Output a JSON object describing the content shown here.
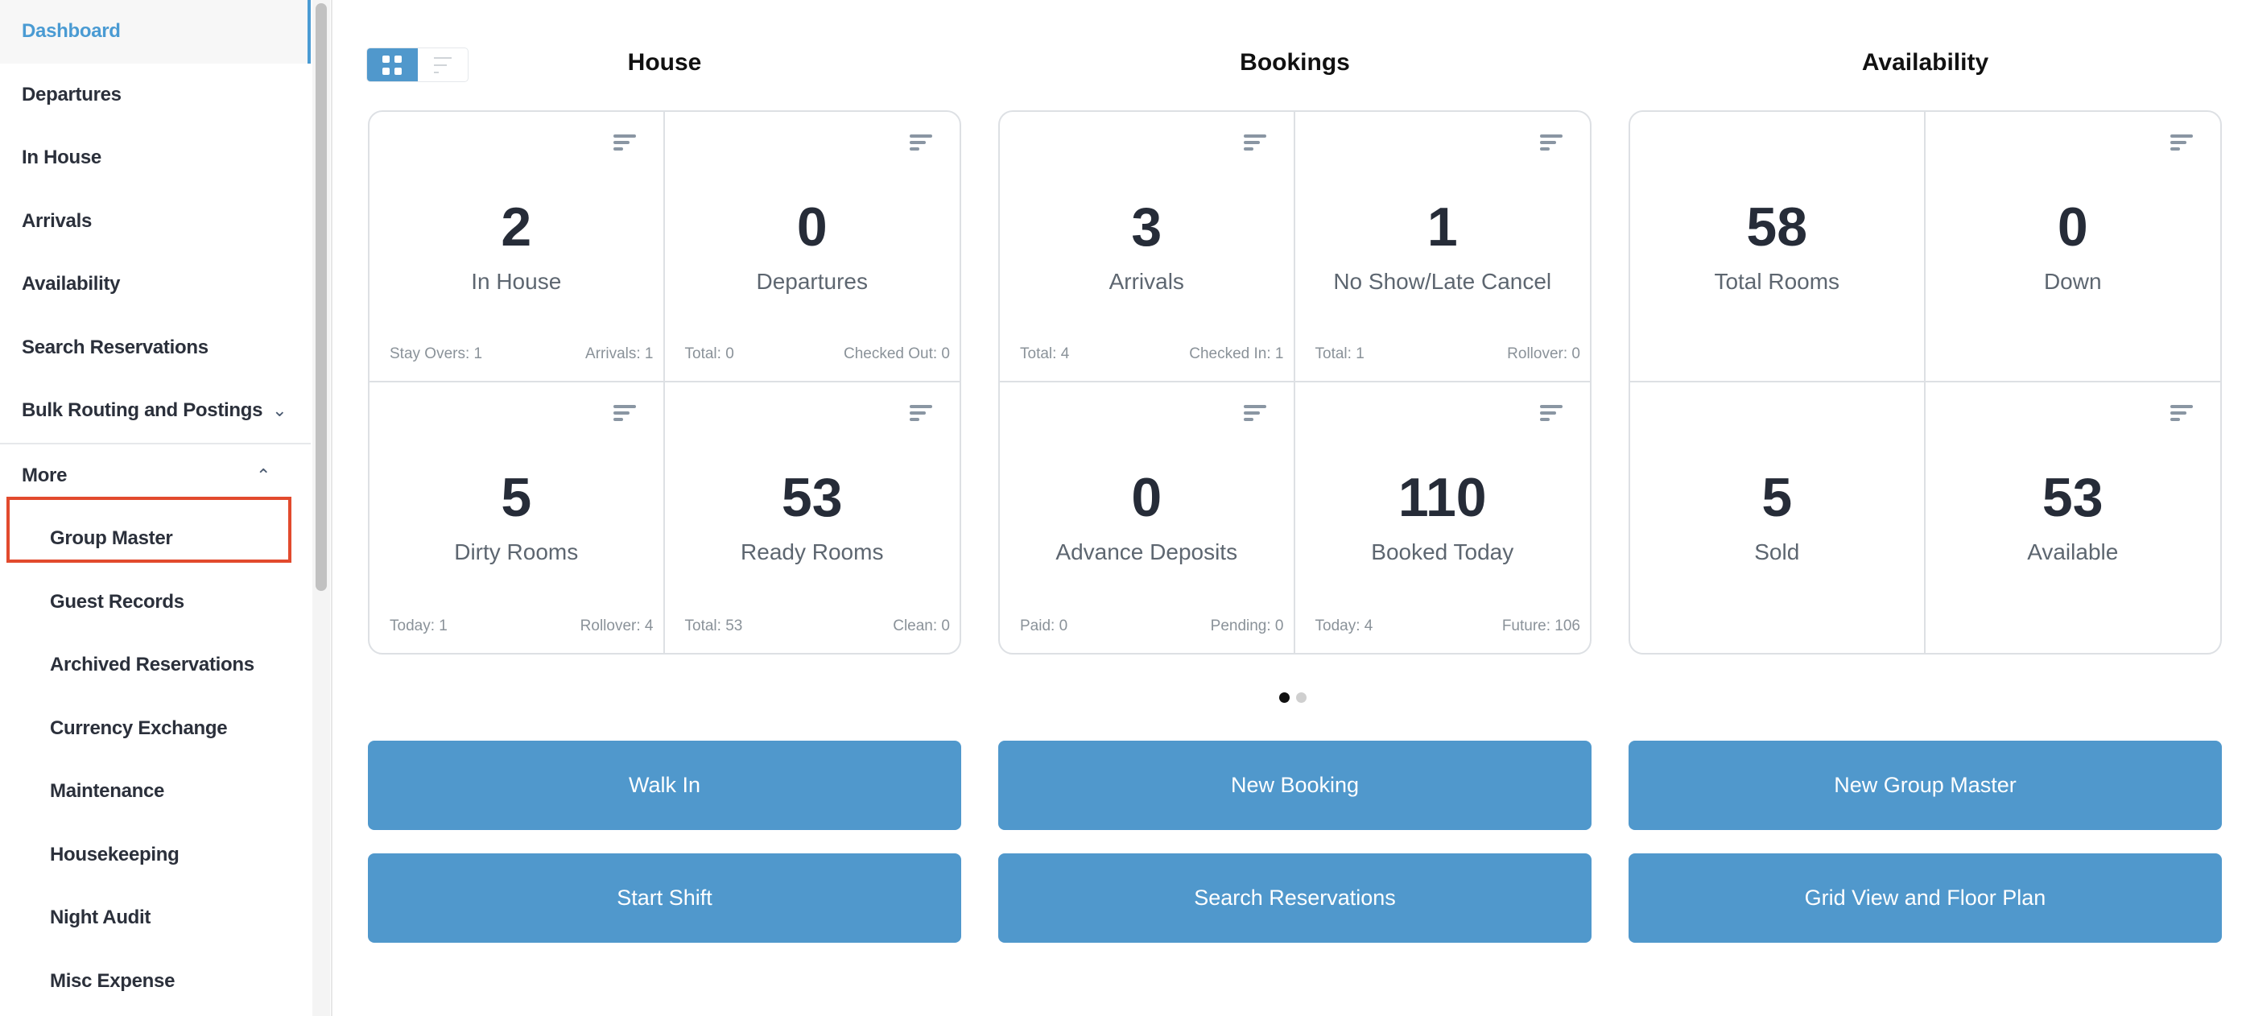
{
  "sidebar": {
    "items": [
      {
        "label": "Dashboard"
      },
      {
        "label": "Departures"
      },
      {
        "label": "In House"
      },
      {
        "label": "Arrivals"
      },
      {
        "label": "Availability"
      },
      {
        "label": "Search Reservations"
      },
      {
        "label": "Bulk Routing and Postings"
      },
      {
        "label": "More"
      },
      {
        "label": "Group Master"
      },
      {
        "label": "Guest Records"
      },
      {
        "label": "Archived Reservations"
      },
      {
        "label": "Currency Exchange"
      },
      {
        "label": "Maintenance"
      },
      {
        "label": "Housekeeping"
      },
      {
        "label": "Night Audit"
      },
      {
        "label": "Misc Expense"
      }
    ]
  },
  "sections": [
    {
      "title": "House",
      "tiles": [
        {
          "value": "2",
          "label": "In House",
          "left": "Stay Overs: 1",
          "right": "Arrivals: 1"
        },
        {
          "value": "0",
          "label": "Departures",
          "left": "Total: 0",
          "right": "Checked Out: 0"
        },
        {
          "value": "5",
          "label": "Dirty Rooms",
          "left": "Today: 1",
          "right": "Rollover: 4"
        },
        {
          "value": "53",
          "label": "Ready Rooms",
          "left": "Total: 53",
          "right": "Clean: 0"
        }
      ]
    },
    {
      "title": "Bookings",
      "tiles": [
        {
          "value": "3",
          "label": "Arrivals",
          "left": "Total: 4",
          "right": "Checked In: 1"
        },
        {
          "value": "1",
          "label": "No Show/Late Cancel",
          "left": "Total: 1",
          "right": "Rollover: 0"
        },
        {
          "value": "0",
          "label": "Advance Deposits",
          "left": "Paid: 0",
          "right": "Pending: 0"
        },
        {
          "value": "110",
          "label": "Booked Today",
          "left": "Today: 4",
          "right": "Future: 106"
        }
      ]
    },
    {
      "title": "Availability",
      "tiles": [
        {
          "value": "58",
          "label": "Total Rooms"
        },
        {
          "value": "0",
          "label": "Down"
        },
        {
          "value": "5",
          "label": "Sold"
        },
        {
          "value": "53",
          "label": "Available"
        }
      ]
    }
  ],
  "buttons": [
    "Walk In",
    "New Booking",
    "New Group Master",
    "Start Shift",
    "Search Reservations",
    "Grid View and Floor Plan"
  ],
  "carousel": {
    "pages": 2,
    "active": 1
  },
  "colors": {
    "accent": "#5098cc",
    "active_nav": "#4a9bd3",
    "highlight_box": "#e24a2d"
  }
}
